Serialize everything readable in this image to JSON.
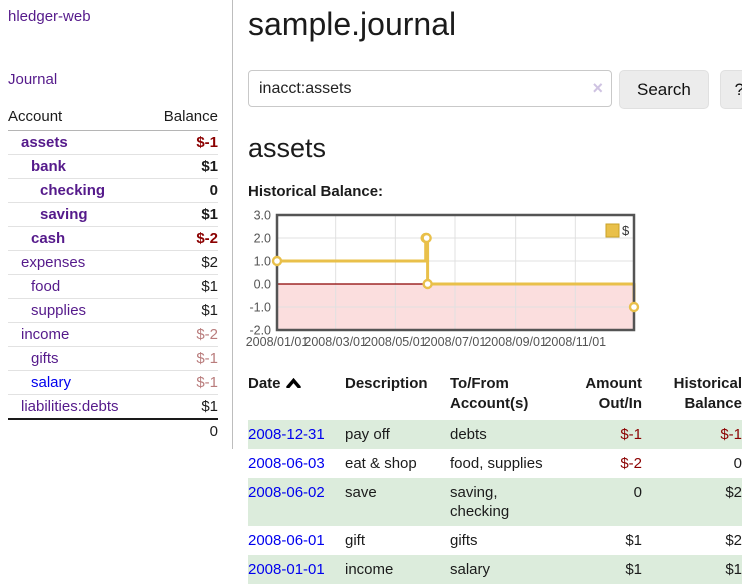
{
  "colors": {
    "visited_link": "#551a8b",
    "link": "#0000ee",
    "negative": "#8b0000",
    "negative_dim": "#b97c7c",
    "row_green": "#dcecdc",
    "button_bg": "#ececec",
    "input_border": "#c9c9c9"
  },
  "sidebar": {
    "brand": "hledger-web",
    "nav_journal": "Journal",
    "table": {
      "headers": [
        "Account",
        "Balance"
      ],
      "rows": [
        {
          "account": "assets",
          "indent": 1,
          "bold": true,
          "balance": "$-1",
          "tone": "neg"
        },
        {
          "account": "bank",
          "indent": 2,
          "bold": true,
          "balance": "$1",
          "tone": "pos"
        },
        {
          "account": "checking",
          "indent": 3,
          "bold": true,
          "balance": "0",
          "tone": "pos"
        },
        {
          "account": "saving",
          "indent": 3,
          "bold": true,
          "balance": "$1",
          "tone": "pos"
        },
        {
          "account": "cash",
          "indent": 2,
          "bold": true,
          "balance": "$-2",
          "tone": "neg"
        },
        {
          "account": "expenses",
          "indent": 1,
          "bold": false,
          "balance": "$2",
          "tone": "pos"
        },
        {
          "account": "food",
          "indent": 2,
          "bold": false,
          "balance": "$1",
          "tone": "pos"
        },
        {
          "account": "supplies",
          "indent": 2,
          "bold": false,
          "balance": "$1",
          "tone": "pos"
        },
        {
          "account": "income",
          "indent": 1,
          "bold": false,
          "balance": "$-2",
          "tone": "dim"
        },
        {
          "account": "gifts",
          "indent": 2,
          "bold": false,
          "balance": "$-1",
          "tone": "dim"
        },
        {
          "account": "salary",
          "indent": 2,
          "bold": false,
          "balance": "$-1",
          "tone": "dim",
          "unvisited": true
        },
        {
          "account": "liabilities:debts",
          "indent": 1,
          "bold": false,
          "balance": "$1",
          "tone": "pos"
        }
      ],
      "total": "0"
    }
  },
  "header": {
    "title": "sample.journal"
  },
  "search": {
    "value": "inacct:assets",
    "clear_icon": "×",
    "button_label": "Search",
    "help_label": "?"
  },
  "account_page": {
    "heading": "assets",
    "chart_label": "Historical Balance:"
  },
  "chart_data": {
    "type": "line",
    "step": true,
    "title": "Historical Balance",
    "xlabel": "",
    "ylabel": "",
    "x_range": [
      "2008-01-01",
      "2008-12-31"
    ],
    "ylim": [
      -2.0,
      3.0
    ],
    "grid": true,
    "legend_position": "top-right",
    "y_ticks": [
      {
        "value": 3.0,
        "label": "3.0"
      },
      {
        "value": 2.0,
        "label": "2.0"
      },
      {
        "value": 1.0,
        "label": "1.0"
      },
      {
        "value": 0.0,
        "label": "0.0"
      },
      {
        "value": -1.0,
        "label": "-1.0"
      },
      {
        "value": -2.0,
        "label": "-2.0"
      }
    ],
    "x_ticks": [
      {
        "date": "2008-01-01",
        "label": "2008/01/01"
      },
      {
        "date": "2008-03-01",
        "label": "2008/03/01"
      },
      {
        "date": "2008-05-01",
        "label": "2008/05/01"
      },
      {
        "date": "2008-07-01",
        "label": "2008/07/01"
      },
      {
        "date": "2008-09-01",
        "label": "2008/09/01"
      },
      {
        "date": "2008-11-01",
        "label": "2008/11/01"
      }
    ],
    "series": [
      {
        "name": "$",
        "color": "#e9c04a",
        "points": [
          {
            "date": "2008-01-01",
            "value": 1.0
          },
          {
            "date": "2008-06-01",
            "value": 2.0
          },
          {
            "date": "2008-06-02",
            "value": 2.0
          },
          {
            "date": "2008-06-03",
            "value": 0.0
          },
          {
            "date": "2008-12-31",
            "value": -1.0
          }
        ]
      }
    ],
    "zero_line_color": "#8b0000",
    "negative_region_fill": "#fbdede",
    "grid_color": "#e0e0e0",
    "border_color": "#545454",
    "tick_label_color": "#545454"
  },
  "register": {
    "headers": [
      {
        "line1": "Date",
        "line2": "",
        "align": "left",
        "sort": "asc"
      },
      {
        "line1": "Description",
        "line2": "",
        "align": "left"
      },
      {
        "line1": "To/From",
        "line2": "Account(s)",
        "align": "left"
      },
      {
        "line1": "Amount",
        "line2": "Out/In",
        "align": "right"
      },
      {
        "line1": "Historical",
        "line2": "Balance",
        "align": "right"
      }
    ],
    "rows": [
      {
        "date": "2008-12-31",
        "description": "pay off",
        "accounts": "debts",
        "amount": "$-1",
        "balance": "$-1"
      },
      {
        "date": "2008-06-03",
        "description": "eat & shop",
        "accounts": "food, supplies",
        "amount": "$-2",
        "balance": "0"
      },
      {
        "date": "2008-06-02",
        "description": "save",
        "accounts": "saving, checking",
        "amount": "0",
        "balance": "$2"
      },
      {
        "date": "2008-06-01",
        "description": "gift",
        "accounts": "gifts",
        "amount": "$1",
        "balance": "$2"
      },
      {
        "date": "2008-01-01",
        "description": "income",
        "accounts": "salary",
        "amount": "$1",
        "balance": "$1"
      }
    ]
  }
}
